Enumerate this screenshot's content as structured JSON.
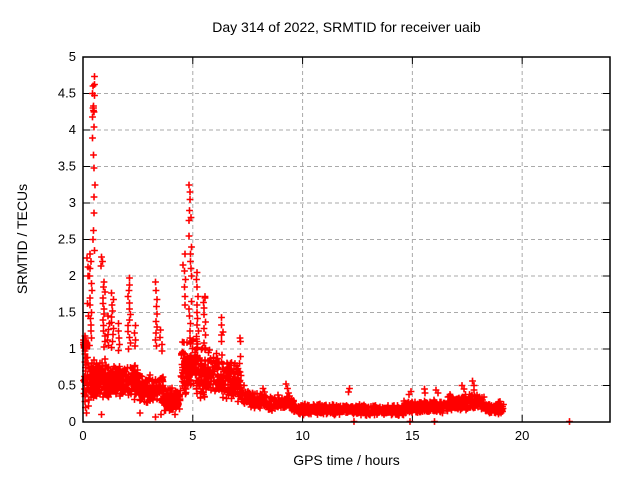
{
  "chart_data": {
    "type": "scatter",
    "title": "Day 314 of 2022, SRMTID for receiver uaib",
    "xlabel": "GPS time / hours",
    "ylabel": "SRMTID / TECUs",
    "xlim": [
      0,
      24
    ],
    "ylim": [
      0,
      5
    ],
    "xticks": [
      0,
      5,
      10,
      15,
      20
    ],
    "yticks": [
      0,
      0.5,
      1,
      1.5,
      2,
      2.5,
      3,
      3.5,
      4,
      4.5,
      5
    ],
    "ytick_labels": [
      "0",
      "0.5",
      "1",
      "1.5",
      "2",
      "2.5",
      "3",
      "3.5",
      "4",
      "4.5",
      "5"
    ],
    "grid": true,
    "legend_position": "none",
    "marker": {
      "shape": "plus",
      "color": "#ff0000",
      "size": 7
    },
    "axis_color": "#000000",
    "grid_color": "#aaaaaa",
    "series_name": "SRMTID",
    "seed": 11,
    "spike_columns": [
      {
        "x": 0.1,
        "ys": [
          1.18,
          1.15,
          1.12,
          1.1,
          1.08,
          1.06,
          1.05,
          1.03,
          1.0,
          0.97,
          0.93,
          0.88,
          0.82,
          0.75,
          0.7,
          0.62,
          0.55,
          0.45,
          0.35,
          0.28,
          0.2
        ]
      },
      {
        "x": 0.22,
        "ys": [
          2.25,
          2.12,
          2.0,
          1.62,
          1.45,
          0.3,
          0.22
        ]
      },
      {
        "x": 0.35,
        "ys": [
          2.3,
          2.2,
          2.1,
          2.0,
          1.9,
          1.8,
          1.7,
          1.6,
          1.5,
          1.42,
          1.33,
          1.25,
          1.15,
          1.05
        ]
      },
      {
        "x": 0.48,
        "ys": [
          4.73,
          4.62,
          4.6,
          4.5,
          4.5,
          4.47,
          4.33,
          4.3,
          4.3,
          4.27,
          4.25,
          4.18,
          4.04,
          3.89,
          3.66,
          3.48,
          3.25
        ]
      },
      {
        "x": 0.5,
        "ys": [
          3.08,
          2.86,
          2.62,
          2.5,
          2.35
        ]
      },
      {
        "x": 0.85,
        "ys": [
          2.26,
          2.2,
          2.14
        ]
      },
      {
        "x": 0.95,
        "ys": [
          1.92,
          1.85,
          1.78,
          1.7,
          1.62,
          1.55,
          1.48,
          1.4,
          1.32,
          1.25,
          1.18,
          1.1,
          1.03
        ]
      },
      {
        "x": 1.15,
        "ys": [
          1.45,
          1.35,
          1.27,
          1.2,
          1.12,
          1.05
        ]
      },
      {
        "x": 1.35,
        "ys": [
          1.77,
          1.68,
          1.6,
          1.52,
          1.44,
          1.36,
          1.28,
          1.2,
          1.1,
          1.02
        ]
      },
      {
        "x": 1.6,
        "ys": [
          1.35,
          1.25,
          1.15,
          1.06,
          0.98
        ]
      },
      {
        "x": 2.1,
        "ys": [
          1.97,
          1.88,
          1.8,
          1.72,
          1.63,
          1.55,
          1.47,
          1.4,
          1.32,
          1.24,
          1.16,
          1.08,
          1.0
        ]
      },
      {
        "x": 2.35,
        "ys": [
          1.32,
          1.22,
          1.12,
          1.04
        ]
      },
      {
        "x": 3.35,
        "ys": [
          1.92,
          1.8,
          1.68,
          1.58,
          1.48,
          1.38,
          1.3,
          1.22,
          1.12,
          1.04
        ]
      },
      {
        "x": 3.55,
        "ys": [
          1.26,
          1.16,
          1.06,
          0.97
        ]
      },
      {
        "x": 4.62,
        "ys": [
          2.3,
          2.15,
          2.07,
          1.95,
          1.85,
          1.72,
          1.6
        ]
      },
      {
        "x": 4.88,
        "ys": [
          3.25,
          3.15,
          3.05,
          2.9,
          2.8,
          2.76,
          2.55,
          2.4,
          2.3,
          2.2,
          2.1,
          2.0,
          1.65,
          1.55,
          1.45,
          1.35,
          1.25,
          1.15,
          0.9,
          0.8,
          0.7
        ]
      },
      {
        "x": 5.2,
        "ys": [
          2.05,
          1.95,
          1.85,
          1.72,
          1.6,
          1.5,
          1.42,
          1.33,
          1.25,
          1.17,
          1.1,
          0.85,
          0.7,
          0.57
        ]
      },
      {
        "x": 5.55,
        "ys": [
          1.72,
          1.7,
          1.64,
          1.56,
          1.47,
          1.37,
          1.28,
          1.19,
          1.08,
          0.99,
          0.78,
          0.65,
          0.52
        ]
      },
      {
        "x": 6.35,
        "ys": [
          1.43,
          1.33,
          1.23,
          1.19,
          1.1,
          0.92,
          0.82,
          0.72,
          0.62,
          0.52
        ]
      },
      {
        "x": 7.15,
        "ys": [
          1.15,
          1.1,
          0.9,
          0.8
        ]
      },
      {
        "x": 7.3,
        "ys": [
          0.5,
          0.44,
          0.38
        ]
      },
      {
        "x": 8.25,
        "ys": [
          0.46,
          0.41
        ]
      },
      {
        "x": 9.3,
        "ys": [
          0.52,
          0.46,
          0.4
        ]
      },
      {
        "x": 12.1,
        "ys": [
          0.46,
          0.41
        ]
      },
      {
        "x": 14.9,
        "ys": [
          0.42,
          0.38
        ]
      },
      {
        "x": 15.55,
        "ys": [
          0.45,
          0.4
        ]
      },
      {
        "x": 16.1,
        "ys": [
          0.44,
          0.4
        ]
      },
      {
        "x": 17.3,
        "ys": [
          0.5,
          0.45
        ]
      },
      {
        "x": 17.75,
        "ys": [
          0.56,
          0.5,
          0.44
        ]
      }
    ],
    "extra_points": [
      [
        12.35,
        0.01
      ],
      [
        14.9,
        0.01
      ],
      [
        16.0,
        0.01
      ],
      [
        22.15,
        0.01
      ],
      [
        0.15,
        0.12
      ],
      [
        0.85,
        0.1
      ],
      [
        2.6,
        0.12
      ],
      [
        3.3,
        0.07
      ],
      [
        3.55,
        0.1
      ],
      [
        4.2,
        0.1
      ]
    ],
    "bands": [
      {
        "x0": 0.02,
        "x1": 0.18,
        "yc": 1.08,
        "spread": 0.09,
        "n": 18
      },
      {
        "x0": 0.02,
        "x1": 0.35,
        "yc": 0.6,
        "spread": 0.38,
        "n": 26
      },
      {
        "x0": 0.35,
        "x1": 1.1,
        "yc": 0.6,
        "spread": 0.28,
        "n": 150
      },
      {
        "x0": 1.1,
        "x1": 2.5,
        "yc": 0.55,
        "spread": 0.25,
        "n": 200
      },
      {
        "x0": 2.5,
        "x1": 3.7,
        "yc": 0.45,
        "spread": 0.22,
        "n": 150
      },
      {
        "x0": 3.7,
        "x1": 4.45,
        "yc": 0.3,
        "spread": 0.18,
        "n": 110
      },
      {
        "x0": 4.45,
        "x1": 5.25,
        "yc": 0.75,
        "spread": 0.45,
        "n": 130
      },
      {
        "x0": 5.25,
        "x1": 6.3,
        "yc": 0.65,
        "spread": 0.4,
        "n": 130
      },
      {
        "x0": 6.3,
        "x1": 7.2,
        "yc": 0.55,
        "spread": 0.3,
        "n": 110
      },
      {
        "x0": 7.2,
        "x1": 8.2,
        "yc": 0.3,
        "spread": 0.13,
        "n": 90
      },
      {
        "x0": 8.2,
        "x1": 9.6,
        "yc": 0.26,
        "spread": 0.11,
        "n": 130
      },
      {
        "x0": 9.6,
        "x1": 12.1,
        "yc": 0.17,
        "spread": 0.08,
        "n": 280
      },
      {
        "x0": 12.1,
        "x1": 14.6,
        "yc": 0.16,
        "spread": 0.08,
        "n": 280
      },
      {
        "x0": 14.6,
        "x1": 16.6,
        "yc": 0.21,
        "spread": 0.1,
        "n": 220
      },
      {
        "x0": 16.6,
        "x1": 18.3,
        "yc": 0.27,
        "spread": 0.12,
        "n": 200
      },
      {
        "x0": 18.3,
        "x1": 19.15,
        "yc": 0.19,
        "spread": 0.09,
        "n": 110
      }
    ]
  }
}
